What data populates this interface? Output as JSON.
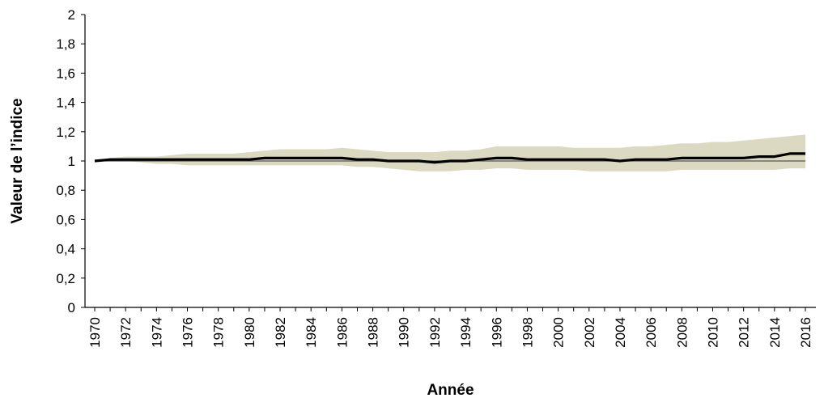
{
  "chart_data": {
    "type": "line",
    "xlabel": "Année",
    "ylabel": "Valeur de l’indice",
    "xlim": [
      1970,
      2016
    ],
    "ylim": [
      0,
      2
    ],
    "x_ticks": [
      "1970",
      "1972",
      "1974",
      "1976",
      "1978",
      "1980",
      "1982",
      "1984",
      "1986",
      "1988",
      "1990",
      "1992",
      "1994",
      "1996",
      "1998",
      "2000",
      "2002",
      "2004",
      "2006",
      "2008",
      "2010",
      "2012",
      "2014",
      "2016"
    ],
    "y_ticks": [
      "0",
      "0,2",
      "0,4",
      "0,6",
      "0,8",
      "1",
      "1,2",
      "1,4",
      "1,6",
      "1,8",
      "2"
    ],
    "y_tick_values": [
      0,
      0.2,
      0.4,
      0.6,
      0.8,
      1,
      1.2,
      1.4,
      1.6,
      1.8,
      2
    ],
    "grid": false,
    "reference_line": 1,
    "colors": {
      "series": "#000000",
      "band": "#dcd9c3",
      "reference": "#555555"
    },
    "x": [
      1970,
      1971,
      1972,
      1973,
      1974,
      1975,
      1976,
      1977,
      1978,
      1979,
      1980,
      1981,
      1982,
      1983,
      1984,
      1985,
      1986,
      1987,
      1988,
      1989,
      1990,
      1991,
      1992,
      1993,
      1994,
      1995,
      1996,
      1997,
      1998,
      1999,
      2000,
      2001,
      2002,
      2003,
      2004,
      2005,
      2006,
      2007,
      2008,
      2009,
      2010,
      2011,
      2012,
      2013,
      2014,
      2015,
      2016
    ],
    "series": [
      {
        "values": [
          1.0,
          1.01,
          1.01,
          1.01,
          1.01,
          1.01,
          1.01,
          1.01,
          1.01,
          1.01,
          1.01,
          1.02,
          1.02,
          1.02,
          1.02,
          1.02,
          1.02,
          1.01,
          1.01,
          1.0,
          1.0,
          1.0,
          0.99,
          1.0,
          1.0,
          1.01,
          1.02,
          1.02,
          1.01,
          1.01,
          1.01,
          1.01,
          1.01,
          1.01,
          1.0,
          1.01,
          1.01,
          1.01,
          1.02,
          1.02,
          1.02,
          1.02,
          1.02,
          1.03,
          1.03,
          1.05,
          1.05
        ],
        "lower": [
          1.0,
          1.0,
          1.0,
          0.99,
          0.98,
          0.98,
          0.97,
          0.97,
          0.97,
          0.97,
          0.97,
          0.97,
          0.97,
          0.97,
          0.97,
          0.97,
          0.97,
          0.96,
          0.96,
          0.95,
          0.94,
          0.93,
          0.93,
          0.93,
          0.94,
          0.94,
          0.95,
          0.95,
          0.94,
          0.94,
          0.94,
          0.94,
          0.93,
          0.93,
          0.93,
          0.93,
          0.93,
          0.93,
          0.94,
          0.94,
          0.94,
          0.94,
          0.94,
          0.94,
          0.94,
          0.95,
          0.95
        ],
        "upper": [
          1.0,
          1.02,
          1.03,
          1.03,
          1.03,
          1.04,
          1.05,
          1.05,
          1.05,
          1.05,
          1.06,
          1.07,
          1.08,
          1.08,
          1.08,
          1.08,
          1.09,
          1.08,
          1.07,
          1.06,
          1.06,
          1.06,
          1.06,
          1.07,
          1.07,
          1.08,
          1.1,
          1.1,
          1.1,
          1.1,
          1.1,
          1.09,
          1.09,
          1.09,
          1.09,
          1.1,
          1.1,
          1.11,
          1.12,
          1.12,
          1.13,
          1.13,
          1.14,
          1.15,
          1.16,
          1.17,
          1.18
        ]
      }
    ]
  }
}
